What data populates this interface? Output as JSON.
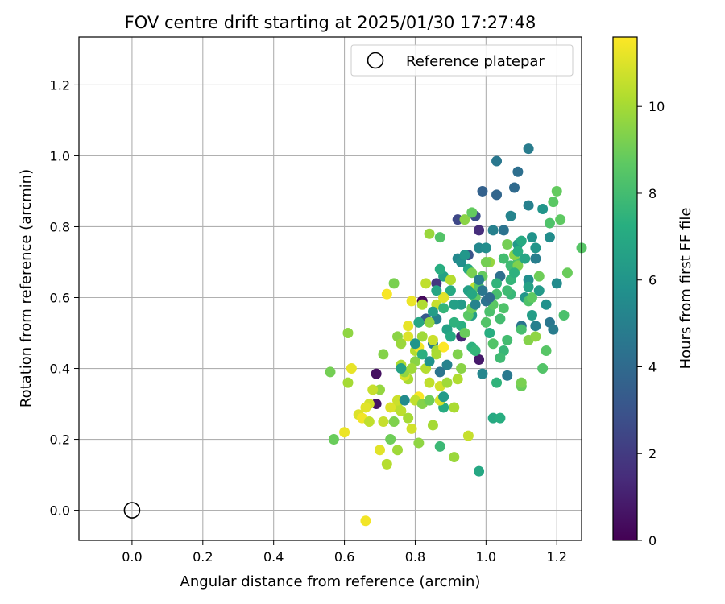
{
  "chart_data": {
    "type": "scatter",
    "title": "FOV centre drift starting at 2025/01/30 17:27:48",
    "xlabel": "Angular distance from reference (arcmin)",
    "ylabel": "Rotation from reference (arcmin)",
    "xlim": [
      -0.15,
      1.27
    ],
    "ylim": [
      -0.085,
      1.335
    ],
    "xticks": [
      0.0,
      0.2,
      0.4,
      0.6,
      0.8,
      1.0,
      1.2
    ],
    "xtick_labels": [
      "0.0",
      "0.2",
      "0.4",
      "0.6",
      "0.8",
      "1.0",
      "1.2"
    ],
    "yticks": [
      0.0,
      0.2,
      0.4,
      0.6,
      0.8,
      1.0,
      1.2
    ],
    "ytick_labels": [
      "0.0",
      "0.2",
      "0.4",
      "0.6",
      "0.8",
      "1.0",
      "1.2"
    ],
    "grid": true,
    "legend": {
      "position": "top-right",
      "entries": [
        {
          "label": "Reference platepar",
          "marker": "open-circle"
        }
      ]
    },
    "reference_point": {
      "x": 0.0,
      "y": 0.0
    },
    "colorbar": {
      "label": "Hours from first FF file",
      "range": [
        0,
        11.6
      ],
      "ticks": [
        0,
        2,
        4,
        6,
        8,
        10
      ],
      "tick_labels": [
        "0",
        "2",
        "4",
        "6",
        "8",
        "10"
      ],
      "colormap": "viridis"
    },
    "points": [
      [
        0.82,
        0.59,
        0.3
      ],
      [
        0.69,
        0.385,
        0.5
      ],
      [
        0.69,
        0.3,
        0.6
      ],
      [
        0.98,
        0.425,
        0.8
      ],
      [
        0.93,
        0.49,
        1.2
      ],
      [
        0.98,
        0.79,
        1.5
      ],
      [
        0.86,
        0.64,
        1.8
      ],
      [
        0.92,
        0.82,
        2.5
      ],
      [
        0.97,
        0.83,
        2.8
      ],
      [
        0.95,
        0.72,
        3.0
      ],
      [
        0.83,
        0.54,
        3.2
      ],
      [
        0.99,
        0.9,
        3.6
      ],
      [
        1.03,
        0.89,
        3.8
      ],
      [
        1.08,
        0.91,
        4.0
      ],
      [
        1.09,
        0.955,
        4.2
      ],
      [
        1.03,
        0.985,
        4.6
      ],
      [
        1.12,
        1.02,
        4.8
      ],
      [
        1.12,
        0.86,
        5.0
      ],
      [
        1.04,
        0.66,
        4.3
      ],
      [
        1.1,
        0.52,
        4.5
      ],
      [
        1.18,
        0.53,
        4.6
      ],
      [
        1.19,
        0.51,
        4.8
      ],
      [
        1.14,
        0.52,
        5.0
      ],
      [
        1.06,
        0.38,
        4.7
      ],
      [
        1.14,
        0.71,
        4.9
      ],
      [
        1.07,
        0.83,
        5.2
      ],
      [
        0.99,
        0.385,
        5.3
      ],
      [
        0.86,
        0.54,
        5.0
      ],
      [
        0.85,
        0.47,
        4.8
      ],
      [
        0.89,
        0.41,
        5.1
      ],
      [
        0.98,
        0.74,
        5.4
      ],
      [
        1.0,
        0.74,
        5.6
      ],
      [
        1.02,
        0.79,
        5.0
      ],
      [
        1.05,
        0.79,
        4.4
      ],
      [
        1.12,
        0.65,
        5.7
      ],
      [
        1.13,
        0.77,
        5.9
      ],
      [
        1.14,
        0.74,
        6.0
      ],
      [
        1.11,
        0.6,
        6.1
      ],
      [
        1.2,
        0.64,
        5.5
      ],
      [
        1.09,
        0.75,
        6.2
      ],
      [
        0.93,
        0.58,
        6.3
      ],
      [
        0.96,
        0.55,
        6.4
      ],
      [
        0.91,
        0.58,
        6.5
      ],
      [
        0.88,
        0.66,
        6.6
      ],
      [
        0.95,
        0.68,
        6.8
      ],
      [
        0.98,
        0.11,
        6.9
      ],
      [
        1.02,
        0.26,
        7.0
      ],
      [
        1.04,
        0.26,
        7.2
      ],
      [
        0.87,
        0.18,
        7.8
      ],
      [
        0.88,
        0.29,
        7.1
      ],
      [
        0.89,
        0.51,
        6.7
      ],
      [
        0.9,
        0.62,
        7.0
      ],
      [
        0.93,
        0.52,
        7.3
      ],
      [
        0.96,
        0.46,
        7.4
      ],
      [
        0.97,
        0.45,
        7.6
      ],
      [
        1.01,
        0.5,
        7.2
      ],
      [
        1.03,
        0.64,
        7.5
      ],
      [
        1.07,
        0.61,
        7.7
      ],
      [
        1.07,
        0.69,
        7.9
      ],
      [
        1.05,
        0.71,
        8.0
      ],
      [
        1.09,
        0.7,
        8.2
      ],
      [
        1.1,
        0.51,
        8.1
      ],
      [
        1.12,
        0.59,
        8.3
      ],
      [
        1.16,
        0.4,
        8.4
      ],
      [
        1.17,
        0.45,
        8.5
      ],
      [
        1.19,
        0.87,
        8.6
      ],
      [
        1.2,
        0.9,
        8.8
      ],
      [
        1.21,
        0.82,
        8.7
      ],
      [
        1.23,
        0.67,
        8.9
      ],
      [
        1.22,
        0.55,
        8.2
      ],
      [
        1.27,
        0.74,
        8.5
      ],
      [
        1.18,
        0.81,
        8.3
      ],
      [
        1.13,
        0.6,
        8.7
      ],
      [
        1.1,
        0.35,
        8.9
      ],
      [
        1.1,
        0.36,
        9.2
      ],
      [
        1.12,
        0.48,
        9.4
      ],
      [
        1.14,
        0.49,
        9.6
      ],
      [
        1.15,
        0.66,
        9.0
      ],
      [
        1.09,
        0.69,
        9.3
      ],
      [
        1.08,
        0.72,
        9.5
      ],
      [
        1.06,
        0.75,
        9.1
      ],
      [
        1.01,
        0.7,
        9.7
      ],
      [
        0.96,
        0.67,
        9.2
      ],
      [
        0.94,
        0.82,
        9.5
      ],
      [
        0.96,
        0.84,
        8.8
      ],
      [
        0.9,
        0.65,
        9.8
      ],
      [
        0.88,
        0.6,
        9.6
      ],
      [
        0.84,
        0.53,
        9.7
      ],
      [
        0.82,
        0.49,
        9.9
      ],
      [
        0.86,
        0.45,
        10.0
      ],
      [
        0.87,
        0.77,
        8.4
      ],
      [
        0.84,
        0.78,
        9.8
      ],
      [
        0.8,
        0.42,
        9.5
      ],
      [
        0.78,
        0.37,
        10.1
      ],
      [
        0.76,
        0.41,
        10.2
      ],
      [
        0.75,
        0.29,
        10.4
      ],
      [
        0.75,
        0.17,
        9.9
      ],
      [
        0.74,
        0.25,
        9.3
      ],
      [
        0.73,
        0.2,
        9.0
      ],
      [
        0.72,
        0.13,
        10.3
      ],
      [
        0.71,
        0.44,
        9.4
      ],
      [
        0.74,
        0.64,
        9.2
      ],
      [
        0.56,
        0.39,
        9.1
      ],
      [
        0.57,
        0.2,
        8.9
      ],
      [
        0.61,
        0.5,
        9.6
      ],
      [
        0.61,
        0.36,
        10.0
      ],
      [
        0.62,
        0.4,
        11.2
      ],
      [
        0.6,
        0.22,
        11.3
      ],
      [
        0.64,
        0.27,
        11.0
      ],
      [
        0.65,
        0.26,
        11.4
      ],
      [
        0.67,
        0.3,
        10.8
      ],
      [
        0.67,
        0.25,
        10.5
      ],
      [
        0.7,
        0.34,
        9.7
      ],
      [
        0.71,
        0.25,
        10.6
      ],
      [
        0.7,
        0.17,
        11.1
      ],
      [
        0.72,
        0.61,
        11.5
      ],
      [
        0.73,
        0.29,
        11.0
      ],
      [
        0.75,
        0.31,
        10.7
      ],
      [
        0.76,
        0.28,
        10.4
      ],
      [
        0.77,
        0.38,
        10.9
      ],
      [
        0.78,
        0.52,
        11.2
      ],
      [
        0.78,
        0.49,
        11.0
      ],
      [
        0.79,
        0.59,
        11.3
      ],
      [
        0.8,
        0.45,
        10.3
      ],
      [
        0.81,
        0.46,
        11.4
      ],
      [
        0.81,
        0.32,
        11.5
      ],
      [
        0.82,
        0.58,
        10.2
      ],
      [
        0.83,
        0.64,
        10.5
      ],
      [
        0.85,
        0.24,
        10.0
      ],
      [
        0.86,
        0.58,
        10.6
      ],
      [
        0.87,
        0.31,
        10.9
      ],
      [
        0.87,
        0.35,
        10.8
      ],
      [
        0.88,
        0.6,
        11.1
      ],
      [
        0.88,
        0.46,
        11.6
      ],
      [
        0.9,
        0.65,
        10.3
      ],
      [
        0.91,
        0.29,
        10.1
      ],
      [
        0.91,
        0.15,
        9.8
      ],
      [
        0.92,
        0.37,
        10.2
      ],
      [
        0.95,
        0.21,
        10.6
      ],
      [
        0.97,
        0.63,
        10.4
      ],
      [
        0.85,
        0.48,
        10.7
      ],
      [
        0.86,
        0.44,
        10.1
      ],
      [
        0.89,
        0.36,
        9.9
      ],
      [
        0.84,
        0.36,
        10.5
      ],
      [
        0.83,
        0.4,
        10.3
      ],
      [
        0.79,
        0.23,
        10.8
      ],
      [
        0.8,
        0.31,
        10.5
      ],
      [
        0.81,
        0.19,
        9.6
      ],
      [
        0.82,
        0.3,
        9.4
      ],
      [
        0.84,
        0.31,
        9.0
      ],
      [
        0.75,
        0.49,
        9.5
      ],
      [
        0.76,
        0.47,
        9.8
      ],
      [
        0.77,
        0.39,
        9.7
      ],
      [
        0.78,
        0.26,
        10.0
      ],
      [
        0.79,
        0.4,
        9.9
      ],
      [
        0.66,
        -0.03,
        11.4
      ],
      [
        0.66,
        0.29,
        11.1
      ],
      [
        0.68,
        0.34,
        10.6
      ],
      [
        0.92,
        0.44,
        9.3
      ],
      [
        0.93,
        0.4,
        9.5
      ],
      [
        0.94,
        0.5,
        8.9
      ],
      [
        0.95,
        0.55,
        8.6
      ],
      [
        0.96,
        0.57,
        9.0
      ],
      [
        0.97,
        0.6,
        8.7
      ],
      [
        0.98,
        0.63,
        8.5
      ],
      [
        0.99,
        0.66,
        8.8
      ],
      [
        1.0,
        0.7,
        9.1
      ],
      [
        1.0,
        0.53,
        8.4
      ],
      [
        1.01,
        0.56,
        8.2
      ],
      [
        1.02,
        0.58,
        8.6
      ],
      [
        1.03,
        0.61,
        8.1
      ],
      [
        1.04,
        0.54,
        8.0
      ],
      [
        1.05,
        0.57,
        8.3
      ],
      [
        1.06,
        0.62,
        7.9
      ],
      [
        1.07,
        0.65,
        7.6
      ],
      [
        1.08,
        0.67,
        7.4
      ],
      [
        1.09,
        0.73,
        7.2
      ],
      [
        1.1,
        0.76,
        7.0
      ],
      [
        1.11,
        0.71,
        6.8
      ],
      [
        1.12,
        0.63,
        6.6
      ],
      [
        1.13,
        0.55,
        6.4
      ],
      [
        1.15,
        0.62,
        6.2
      ],
      [
        1.16,
        0.85,
        6.0
      ],
      [
        1.17,
        0.58,
        5.8
      ],
      [
        1.18,
        0.77,
        5.6
      ],
      [
        0.92,
        0.71,
        5.4
      ],
      [
        0.93,
        0.7,
        5.7
      ],
      [
        0.94,
        0.72,
        6.1
      ],
      [
        0.95,
        0.62,
        6.5
      ],
      [
        0.96,
        0.61,
        6.9
      ],
      [
        0.97,
        0.58,
        5.2
      ],
      [
        0.98,
        0.65,
        4.9
      ],
      [
        0.99,
        0.62,
        4.6
      ],
      [
        1.0,
        0.59,
        4.4
      ],
      [
        1.01,
        0.6,
        4.1
      ],
      [
        0.87,
        0.39,
        4.5
      ],
      [
        0.88,
        0.32,
        6.3
      ],
      [
        0.89,
        0.51,
        6.6
      ],
      [
        0.9,
        0.49,
        7.0
      ],
      [
        0.91,
        0.53,
        7.4
      ],
      [
        0.84,
        0.42,
        5.9
      ],
      [
        0.85,
        0.56,
        6.4
      ],
      [
        0.86,
        0.62,
        6.8
      ],
      [
        0.87,
        0.68,
        7.2
      ],
      [
        0.88,
        0.57,
        7.6
      ],
      [
        0.8,
        0.47,
        6.0
      ],
      [
        0.81,
        0.53,
        6.9
      ],
      [
        0.82,
        0.44,
        7.3
      ],
      [
        0.77,
        0.31,
        5.5
      ],
      [
        0.76,
        0.4,
        6.6
      ],
      [
        1.05,
        0.45,
        7.7
      ],
      [
        1.06,
        0.48,
        8.0
      ],
      [
        1.02,
        0.47,
        8.4
      ],
      [
        1.04,
        0.43,
        7.9
      ],
      [
        1.03,
        0.36,
        7.5
      ]
    ]
  }
}
